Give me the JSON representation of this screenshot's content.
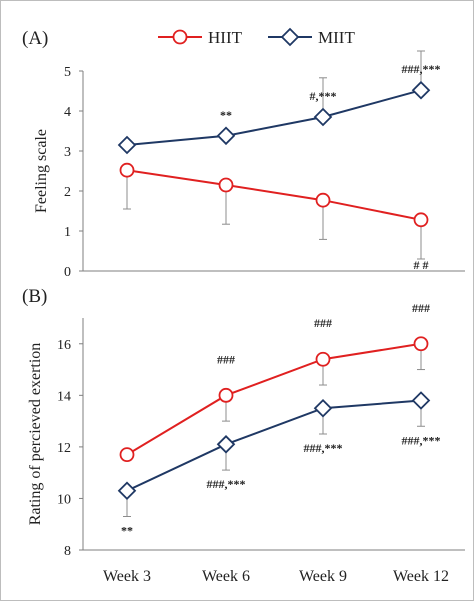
{
  "legend": {
    "items": [
      {
        "label": "HIIT",
        "color": "#e02020",
        "marker": "circle"
      },
      {
        "label": "MIIT",
        "color": "#1f3864",
        "marker": "diamond"
      }
    ]
  },
  "chart_data": [
    {
      "panel_label": "(A)",
      "type": "line",
      "ylabel": "Feeling scale",
      "ylim": [
        0,
        5
      ],
      "yticks": [
        0,
        1,
        2,
        3,
        4,
        5
      ],
      "categories": [
        "Week 3",
        "Week 6",
        "Week 9",
        "Week 12"
      ],
      "show_x_labels": false,
      "series": [
        {
          "name": "HIIT",
          "color": "#e02020",
          "marker": "circle",
          "values": [
            2.52,
            2.15,
            1.77,
            1.28
          ],
          "error": [
            0.97,
            0.98,
            0.98,
            0.98
          ],
          "annotations": [
            "",
            "",
            "",
            "# #"
          ],
          "annotation_pos": [
            "",
            "",
            "",
            "below"
          ]
        },
        {
          "name": "MIIT",
          "color": "#1f3864",
          "marker": "diamond",
          "values": [
            3.15,
            3.38,
            3.85,
            4.52
          ],
          "error": [
            0.0,
            0.0,
            0.98,
            0.98
          ],
          "annotations": [
            "",
            "**",
            "#,***",
            "###,***"
          ],
          "annotation_pos": [
            "",
            "above",
            "above",
            "above"
          ]
        }
      ]
    },
    {
      "panel_label": "(B)",
      "type": "line",
      "ylabel": "Rating of percieved exertion",
      "ylim": [
        8,
        17
      ],
      "yticks": [
        8,
        10,
        12,
        14,
        16
      ],
      "categories": [
        "Week 3",
        "Week 6",
        "Week 9",
        "Week 12"
      ],
      "show_x_labels": true,
      "series": [
        {
          "name": "HIIT",
          "color": "#e02020",
          "marker": "circle",
          "values": [
            11.7,
            14.0,
            15.4,
            16.0
          ],
          "error": [
            0.0,
            1.0,
            1.0,
            1.0
          ],
          "annotations": [
            "",
            "###",
            "###",
            "###"
          ],
          "annotation_pos": [
            "",
            "above",
            "above",
            "above"
          ]
        },
        {
          "name": "MIIT",
          "color": "#1f3864",
          "marker": "diamond",
          "values": [
            10.3,
            12.1,
            13.5,
            13.8
          ],
          "error": [
            1.0,
            1.0,
            1.0,
            1.0
          ],
          "annotations": [
            "**",
            "###,***",
            "###,***",
            "###,***"
          ],
          "annotation_pos": [
            "below",
            "below",
            "below",
            "below"
          ]
        }
      ]
    }
  ]
}
